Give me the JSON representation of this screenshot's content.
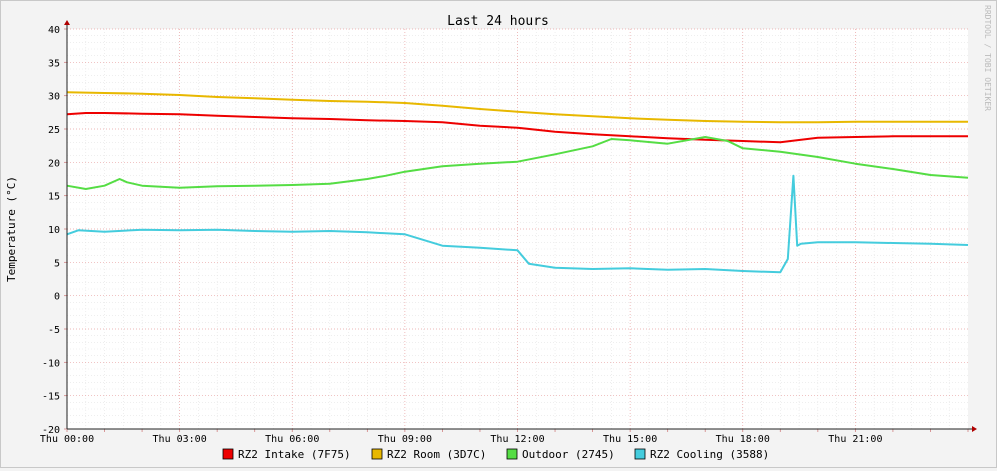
{
  "chart_data": {
    "type": "line",
    "title": "Last 24 hours",
    "ylabel": "Temperature (°C)",
    "xlabel": "",
    "watermark": "RRDTOOL / TOBI OETIKER",
    "xlim_hours": [
      0,
      24
    ],
    "ylim": [
      -20,
      40
    ],
    "y_ticks": [
      40,
      35,
      30,
      25,
      20,
      15,
      10,
      5,
      0,
      -5,
      -10,
      -15,
      -20
    ],
    "x_ticks": [
      {
        "hour": 0,
        "label": "Thu 00:00"
      },
      {
        "hour": 3,
        "label": "Thu 03:00"
      },
      {
        "hour": 6,
        "label": "Thu 06:00"
      },
      {
        "hour": 9,
        "label": "Thu 09:00"
      },
      {
        "hour": 12,
        "label": "Thu 12:00"
      },
      {
        "hour": 15,
        "label": "Thu 15:00"
      },
      {
        "hour": 18,
        "label": "Thu 18:00"
      },
      {
        "hour": 21,
        "label": "Thu 21:00"
      }
    ],
    "grid": true,
    "legend_position": "bottom",
    "x_unit": "hours",
    "series": [
      {
        "name": "RZ2 Intake (7F75)",
        "color": "#ee0000",
        "x": [
          0,
          0.5,
          1,
          2,
          3,
          4,
          5,
          6,
          7,
          8,
          9,
          10,
          11,
          12,
          13,
          14,
          15,
          16,
          17,
          18,
          19,
          20,
          21,
          22,
          23,
          24
        ],
        "values": [
          27.2,
          27.4,
          27.4,
          27.3,
          27.2,
          27.0,
          26.8,
          26.6,
          26.5,
          26.3,
          26.2,
          26.0,
          25.5,
          25.2,
          24.6,
          24.2,
          23.9,
          23.6,
          23.4,
          23.2,
          23.0,
          23.7,
          23.8,
          23.9,
          23.9,
          23.9
        ]
      },
      {
        "name": "RZ2 Room (3D7C)",
        "color": "#e8b800",
        "x": [
          0,
          1,
          2,
          3,
          4,
          5,
          6,
          7,
          8,
          9,
          10,
          11,
          12,
          13,
          14,
          15,
          16,
          17,
          18,
          19,
          20,
          21,
          22,
          23,
          24
        ],
        "values": [
          30.5,
          30.4,
          30.3,
          30.1,
          29.8,
          29.6,
          29.4,
          29.2,
          29.1,
          28.9,
          28.5,
          28.0,
          27.6,
          27.2,
          26.9,
          26.6,
          26.4,
          26.2,
          26.1,
          26.0,
          26.0,
          26.1,
          26.1,
          26.1,
          26.1
        ]
      },
      {
        "name": "Outdoor (2745)",
        "color": "#55dd44",
        "x": [
          0,
          0.5,
          1,
          1.4,
          1.6,
          2,
          3,
          4,
          5,
          6,
          7,
          8,
          8.5,
          9,
          10,
          11,
          12,
          13,
          14,
          14.5,
          15,
          16,
          17,
          17.6,
          18,
          19,
          20,
          21,
          22,
          23,
          24
        ],
        "values": [
          16.5,
          16.0,
          16.5,
          17.5,
          17.0,
          16.5,
          16.2,
          16.4,
          16.5,
          16.6,
          16.8,
          17.5,
          18.0,
          18.6,
          19.4,
          19.8,
          20.1,
          21.2,
          22.4,
          23.5,
          23.3,
          22.8,
          23.8,
          23.2,
          22.1,
          21.6,
          20.8,
          19.8,
          19.0,
          18.1,
          17.7
        ]
      },
      {
        "name": "RZ2 Cooling (3588)",
        "color": "#44ccdd",
        "x": [
          0,
          0.3,
          1,
          2,
          3,
          4,
          5,
          6,
          7,
          8,
          9,
          10,
          11,
          12,
          12.3,
          13,
          14,
          15,
          16,
          17,
          18,
          19.0,
          19.2,
          19.35,
          19.45,
          19.55,
          20,
          21,
          22,
          23,
          24
        ],
        "values": [
          9.2,
          9.8,
          9.6,
          9.9,
          9.8,
          9.9,
          9.7,
          9.6,
          9.7,
          9.5,
          9.2,
          7.5,
          7.2,
          6.8,
          4.8,
          4.2,
          4.0,
          4.1,
          3.9,
          4.0,
          3.7,
          3.5,
          5.5,
          18.0,
          7.5,
          7.8,
          8.0,
          8.0,
          7.9,
          7.8,
          7.6
        ]
      }
    ]
  }
}
